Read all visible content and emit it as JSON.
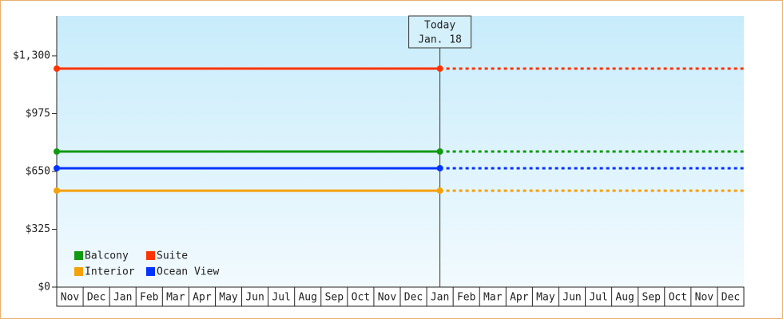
{
  "chart_data": {
    "type": "line",
    "categories": [
      "Nov",
      "Dec",
      "Jan",
      "Feb",
      "Mar",
      "Apr",
      "May",
      "Jun",
      "Jul",
      "Aug",
      "Sep",
      "Oct",
      "Nov",
      "Dec",
      "Jan",
      "Feb",
      "Mar",
      "Apr",
      "May",
      "Jun",
      "Jul",
      "Aug",
      "Sep",
      "Oct",
      "Nov",
      "Dec"
    ],
    "series": [
      {
        "name": "Balcony",
        "color": "#119911",
        "value": 762
      },
      {
        "name": "Suite",
        "color": "#ff3300",
        "value": 1228
      },
      {
        "name": "Interior",
        "color": "#f5a10a",
        "value": 542
      },
      {
        "name": "Ocean View",
        "color": "#0033ff",
        "value": 668
      }
    ],
    "annotation": {
      "lines": [
        "Today",
        "Jan. 18"
      ],
      "category_index": 14
    },
    "ylim": [
      0,
      1524
    ],
    "yticks": [
      {
        "value": 0,
        "label": "$0"
      },
      {
        "value": 325,
        "label": "$325"
      },
      {
        "value": 650,
        "label": "$650"
      },
      {
        "value": 975,
        "label": "$975"
      },
      {
        "value": 1300,
        "label": "$1,300"
      }
    ],
    "legend": "bottom-left"
  }
}
